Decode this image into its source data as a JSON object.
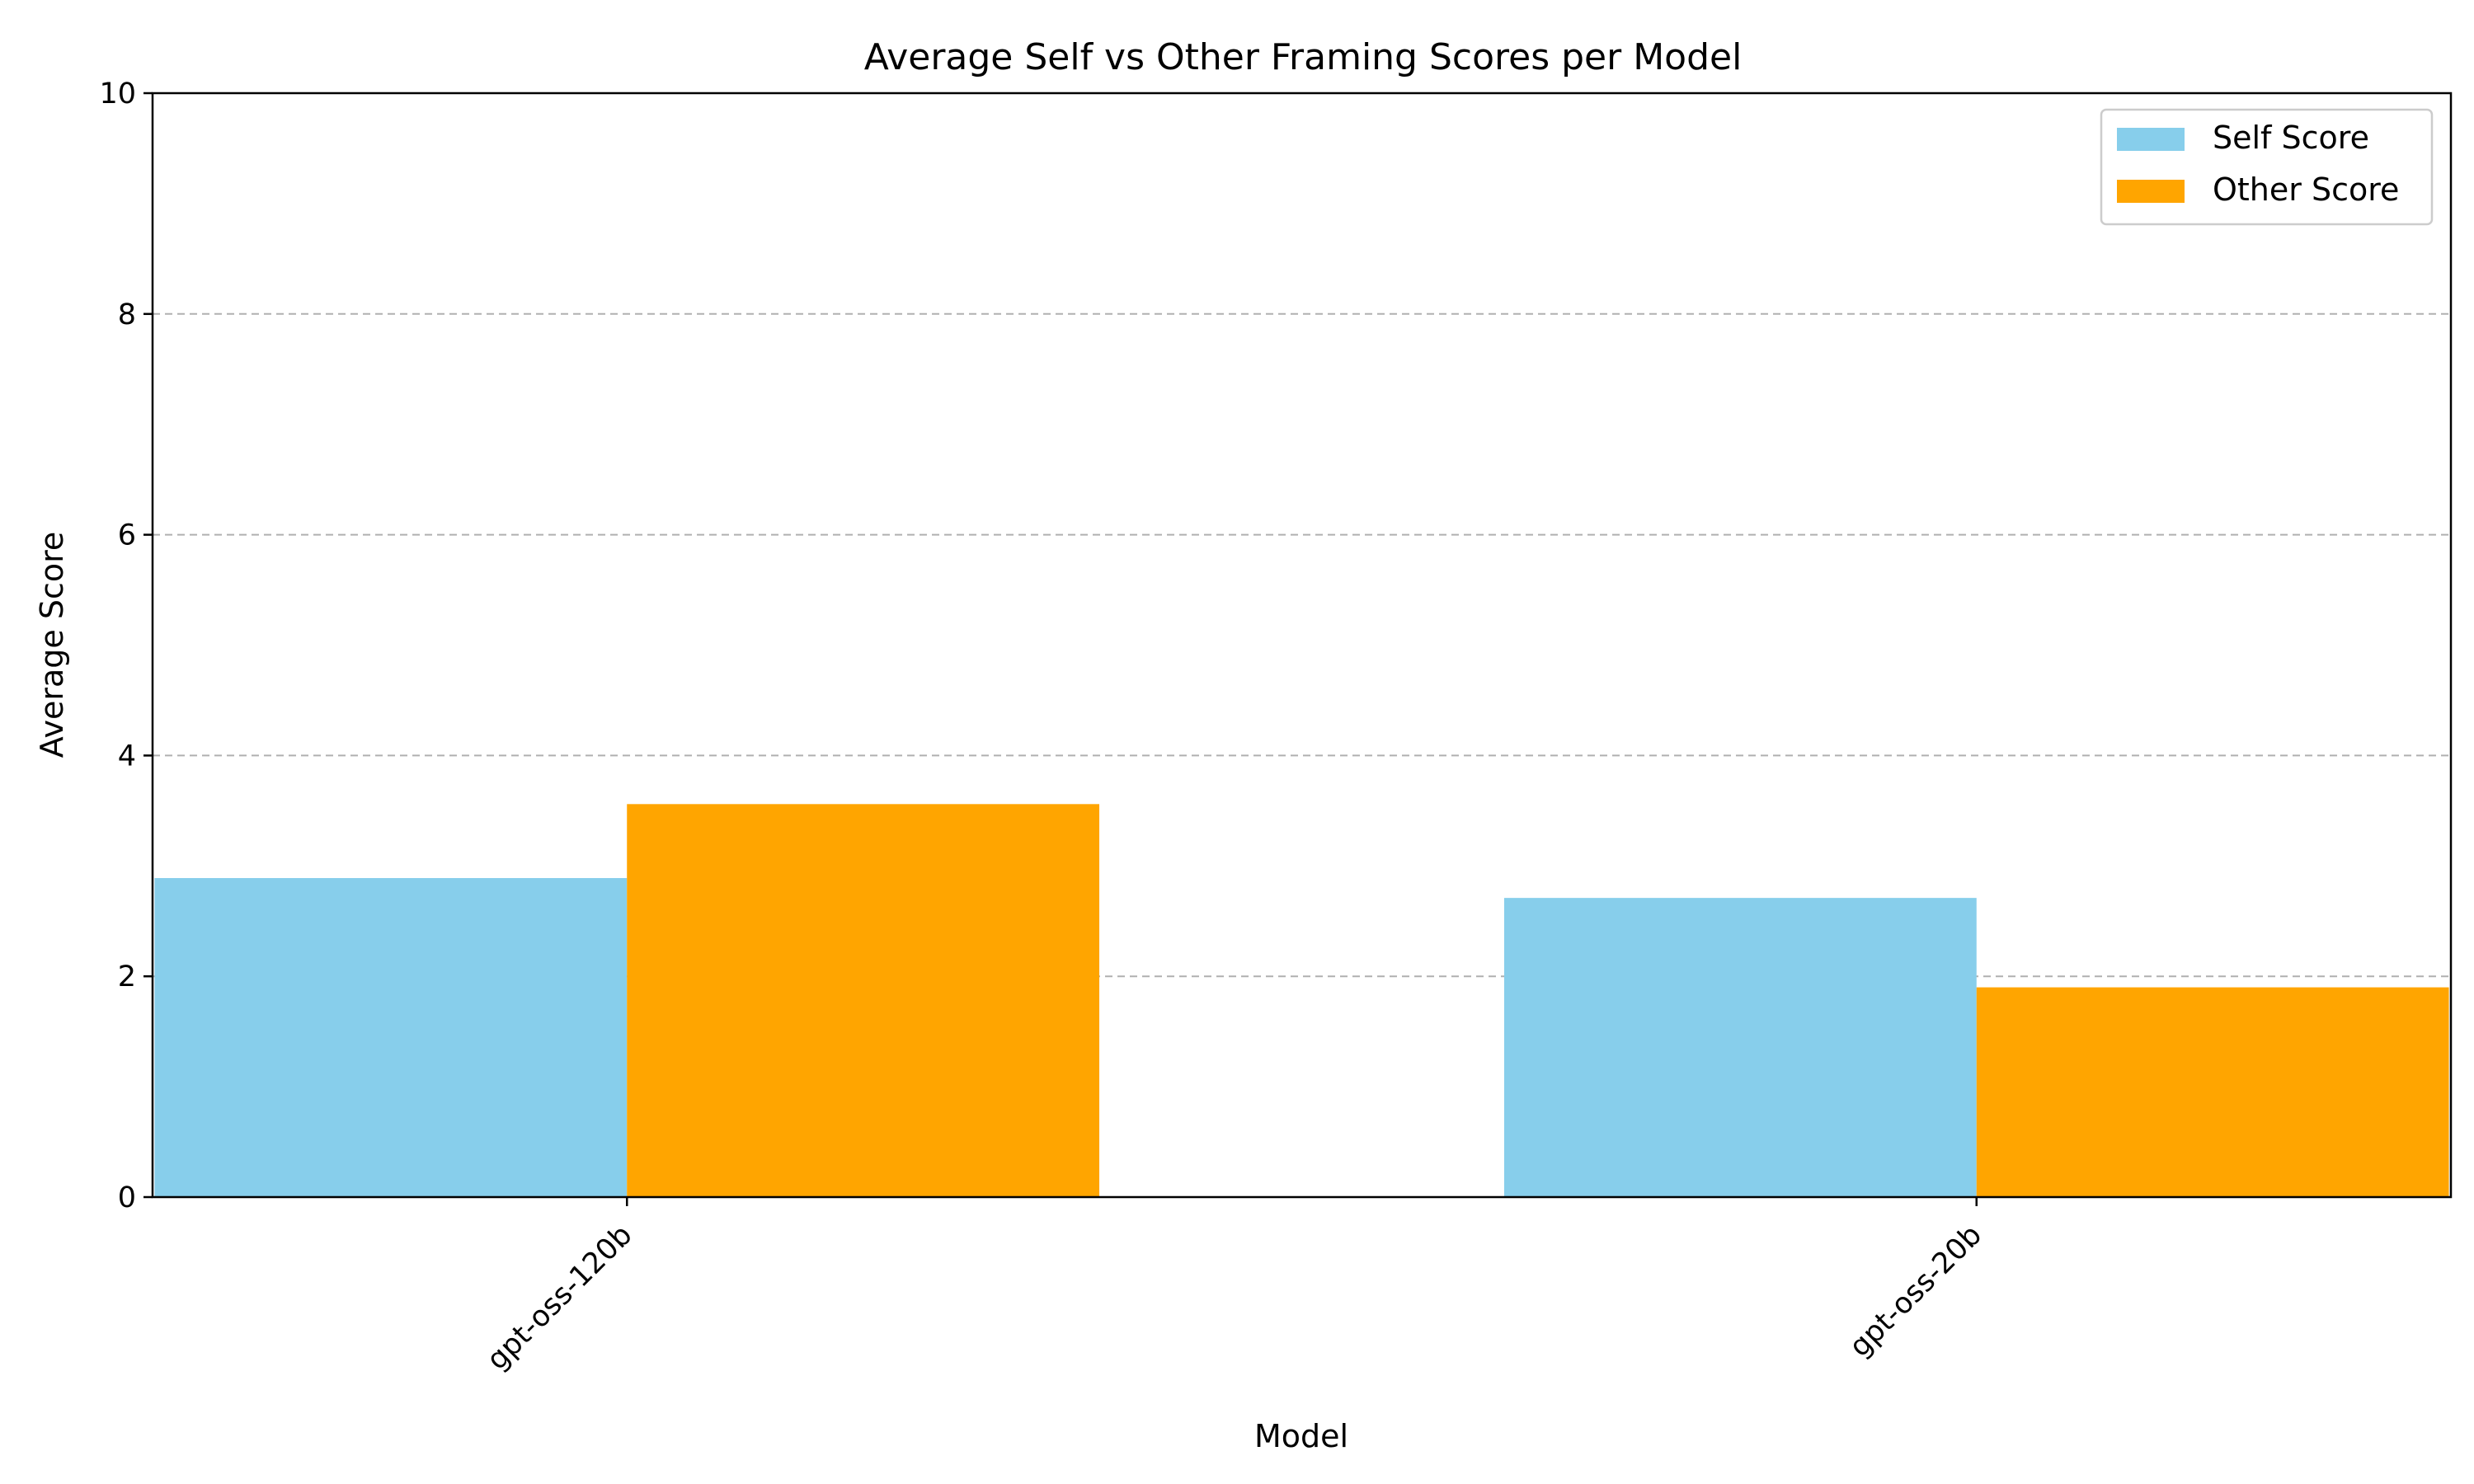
{
  "chart_data": {
    "type": "bar",
    "title": "Average Self vs Other Framing Scores per Model",
    "xlabel": "Model",
    "ylabel": "Average Score",
    "categories": [
      "gpt-oss-120b",
      "gpt-oss-20b"
    ],
    "series": [
      {
        "name": "Self Score",
        "values": [
          2.89,
          2.71
        ],
        "color": "#87ceeb"
      },
      {
        "name": "Other Score",
        "values": [
          3.56,
          1.9
        ],
        "color": "#ffa500"
      }
    ],
    "ylim": [
      0,
      10
    ],
    "yticks": [
      "0",
      "2",
      "4",
      "6",
      "8",
      "10"
    ],
    "grid": "y-dashed",
    "legend_position": "top-right"
  }
}
